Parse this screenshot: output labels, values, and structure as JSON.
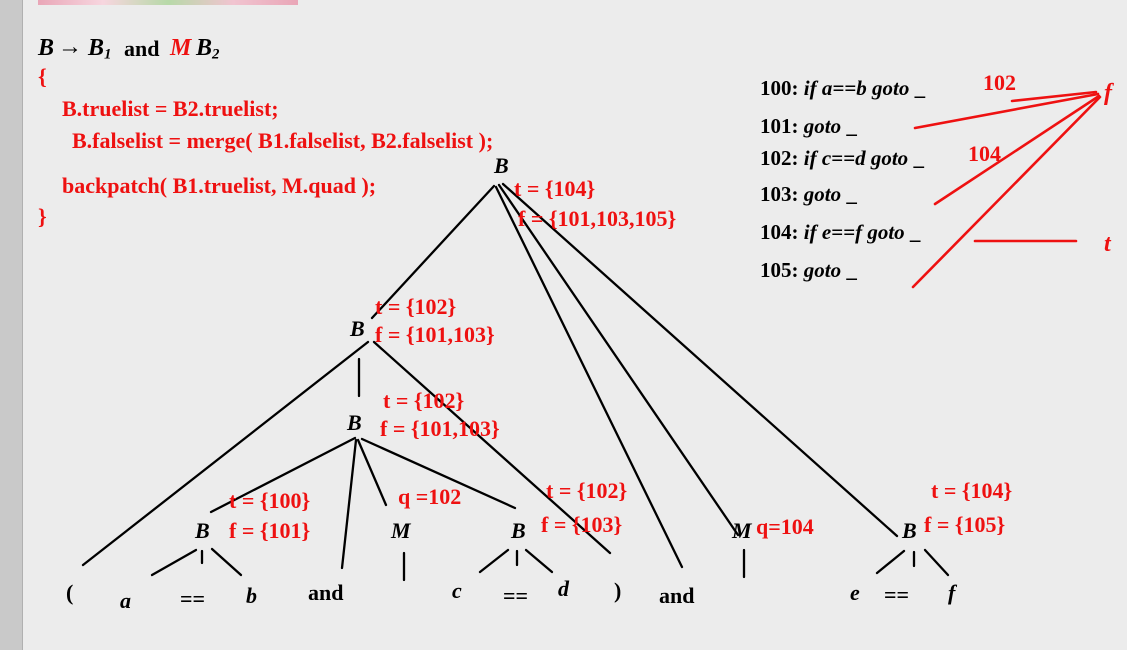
{
  "production": {
    "lhs": "B",
    "arrow": "→",
    "b1": "B",
    "b1_sub": "1",
    "and": "and",
    "m": "M",
    "b2": "B",
    "b2_sub": "2"
  },
  "action_code": {
    "open_brace": "{",
    "line1": "B.truelist = B2.truelist;",
    "line2": "B.falselist = merge( B1.falselist, B2.falselist );",
    "line3": "backpatch( B1.truelist, M.quad );",
    "close_brace": "}"
  },
  "code_listing": [
    {
      "num": "100:",
      "if": "if",
      "cond": "a==b",
      "goto": "goto",
      "blank": "_",
      "filled": "102"
    },
    {
      "num": "101:",
      "goto": "goto",
      "blank": "_"
    },
    {
      "num": "102:",
      "if": "if",
      "cond": "c==d",
      "goto": "goto",
      "blank": "_",
      "filled": "104"
    },
    {
      "num": "103:",
      "goto": "goto",
      "blank": "_"
    },
    {
      "num": "104:",
      "if": "if",
      "cond": "e==f",
      "goto": "goto",
      "blank": "_"
    },
    {
      "num": "105:",
      "goto": "goto",
      "blank": "_"
    }
  ],
  "chain_labels": {
    "f": "f",
    "t": "t"
  },
  "tree": {
    "root": {
      "label": "B",
      "t": "t = {104}",
      "f": "f = {101,103,105}"
    },
    "b_outer": {
      "label": "B",
      "t": "t = {102}",
      "f": "f = {101,103}"
    },
    "b_inner": {
      "label": "B",
      "t": "t = {102}",
      "f": "f = {101,103}"
    },
    "b_ab": {
      "label": "B",
      "t": "t = {100}",
      "f": "f = {101}"
    },
    "m1": {
      "label": "M",
      "q": "q =102"
    },
    "b_cd": {
      "label": "B",
      "t": "t = {102}",
      "f": "f = {103}"
    },
    "m2": {
      "label": "M",
      "q": "q=104"
    },
    "b_ef": {
      "label": "B",
      "t": "t = {104}",
      "f": "f = {105}"
    }
  },
  "leaves": {
    "lparen": "(",
    "a": "a",
    "eq1": "==",
    "b": "b",
    "and1": "and",
    "c": "c",
    "eq2": "==",
    "d": "d",
    "rparen": ")",
    "and2": "and",
    "e": "e",
    "eq3": "==",
    "f": "f"
  }
}
